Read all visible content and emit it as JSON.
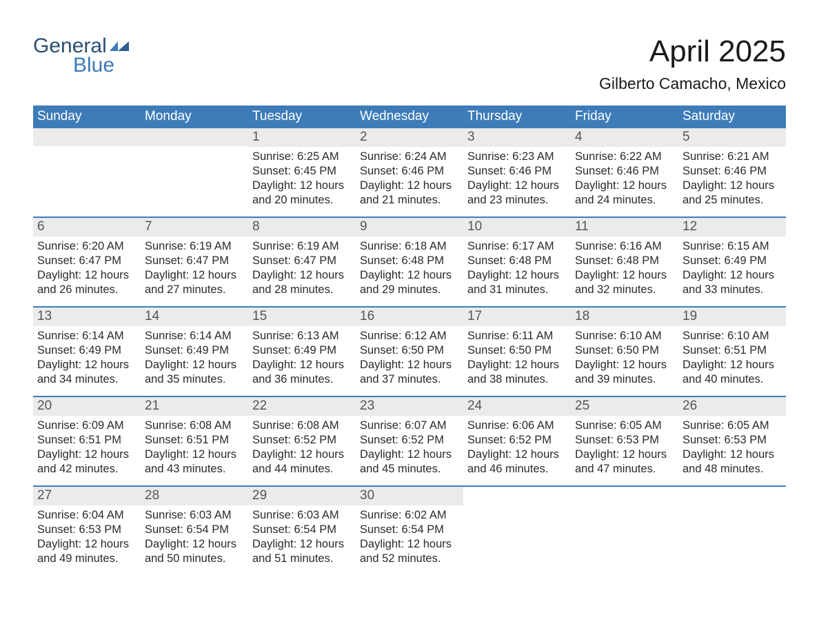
{
  "logo": {
    "line1": "General",
    "line2": "Blue",
    "shape_color": "#3d7cb8"
  },
  "header": {
    "title": "April 2025",
    "location": "Gilberto Camacho, Mexico"
  },
  "colors": {
    "header_bar": "#3d7cb8",
    "row_separator": "#3d7cb8",
    "daynum_bg": "#ebebeb",
    "text": "#2a2a2a",
    "daynum_text": "#555555",
    "page_bg": "#ffffff"
  },
  "weekdays": [
    "Sunday",
    "Monday",
    "Tuesday",
    "Wednesday",
    "Thursday",
    "Friday",
    "Saturday"
  ],
  "weeks": [
    [
      null,
      null,
      {
        "day": "1",
        "sunrise": "Sunrise: 6:25 AM",
        "sunset": "Sunset: 6:45 PM",
        "daylight": "Daylight: 12 hours and 20 minutes."
      },
      {
        "day": "2",
        "sunrise": "Sunrise: 6:24 AM",
        "sunset": "Sunset: 6:46 PM",
        "daylight": "Daylight: 12 hours and 21 minutes."
      },
      {
        "day": "3",
        "sunrise": "Sunrise: 6:23 AM",
        "sunset": "Sunset: 6:46 PM",
        "daylight": "Daylight: 12 hours and 23 minutes."
      },
      {
        "day": "4",
        "sunrise": "Sunrise: 6:22 AM",
        "sunset": "Sunset: 6:46 PM",
        "daylight": "Daylight: 12 hours and 24 minutes."
      },
      {
        "day": "5",
        "sunrise": "Sunrise: 6:21 AM",
        "sunset": "Sunset: 6:46 PM",
        "daylight": "Daylight: 12 hours and 25 minutes."
      }
    ],
    [
      {
        "day": "6",
        "sunrise": "Sunrise: 6:20 AM",
        "sunset": "Sunset: 6:47 PM",
        "daylight": "Daylight: 12 hours and 26 minutes."
      },
      {
        "day": "7",
        "sunrise": "Sunrise: 6:19 AM",
        "sunset": "Sunset: 6:47 PM",
        "daylight": "Daylight: 12 hours and 27 minutes."
      },
      {
        "day": "8",
        "sunrise": "Sunrise: 6:19 AM",
        "sunset": "Sunset: 6:47 PM",
        "daylight": "Daylight: 12 hours and 28 minutes."
      },
      {
        "day": "9",
        "sunrise": "Sunrise: 6:18 AM",
        "sunset": "Sunset: 6:48 PM",
        "daylight": "Daylight: 12 hours and 29 minutes."
      },
      {
        "day": "10",
        "sunrise": "Sunrise: 6:17 AM",
        "sunset": "Sunset: 6:48 PM",
        "daylight": "Daylight: 12 hours and 31 minutes."
      },
      {
        "day": "11",
        "sunrise": "Sunrise: 6:16 AM",
        "sunset": "Sunset: 6:48 PM",
        "daylight": "Daylight: 12 hours and 32 minutes."
      },
      {
        "day": "12",
        "sunrise": "Sunrise: 6:15 AM",
        "sunset": "Sunset: 6:49 PM",
        "daylight": "Daylight: 12 hours and 33 minutes."
      }
    ],
    [
      {
        "day": "13",
        "sunrise": "Sunrise: 6:14 AM",
        "sunset": "Sunset: 6:49 PM",
        "daylight": "Daylight: 12 hours and 34 minutes."
      },
      {
        "day": "14",
        "sunrise": "Sunrise: 6:14 AM",
        "sunset": "Sunset: 6:49 PM",
        "daylight": "Daylight: 12 hours and 35 minutes."
      },
      {
        "day": "15",
        "sunrise": "Sunrise: 6:13 AM",
        "sunset": "Sunset: 6:49 PM",
        "daylight": "Daylight: 12 hours and 36 minutes."
      },
      {
        "day": "16",
        "sunrise": "Sunrise: 6:12 AM",
        "sunset": "Sunset: 6:50 PM",
        "daylight": "Daylight: 12 hours and 37 minutes."
      },
      {
        "day": "17",
        "sunrise": "Sunrise: 6:11 AM",
        "sunset": "Sunset: 6:50 PM",
        "daylight": "Daylight: 12 hours and 38 minutes."
      },
      {
        "day": "18",
        "sunrise": "Sunrise: 6:10 AM",
        "sunset": "Sunset: 6:50 PM",
        "daylight": "Daylight: 12 hours and 39 minutes."
      },
      {
        "day": "19",
        "sunrise": "Sunrise: 6:10 AM",
        "sunset": "Sunset: 6:51 PM",
        "daylight": "Daylight: 12 hours and 40 minutes."
      }
    ],
    [
      {
        "day": "20",
        "sunrise": "Sunrise: 6:09 AM",
        "sunset": "Sunset: 6:51 PM",
        "daylight": "Daylight: 12 hours and 42 minutes."
      },
      {
        "day": "21",
        "sunrise": "Sunrise: 6:08 AM",
        "sunset": "Sunset: 6:51 PM",
        "daylight": "Daylight: 12 hours and 43 minutes."
      },
      {
        "day": "22",
        "sunrise": "Sunrise: 6:08 AM",
        "sunset": "Sunset: 6:52 PM",
        "daylight": "Daylight: 12 hours and 44 minutes."
      },
      {
        "day": "23",
        "sunrise": "Sunrise: 6:07 AM",
        "sunset": "Sunset: 6:52 PM",
        "daylight": "Daylight: 12 hours and 45 minutes."
      },
      {
        "day": "24",
        "sunrise": "Sunrise: 6:06 AM",
        "sunset": "Sunset: 6:52 PM",
        "daylight": "Daylight: 12 hours and 46 minutes."
      },
      {
        "day": "25",
        "sunrise": "Sunrise: 6:05 AM",
        "sunset": "Sunset: 6:53 PM",
        "daylight": "Daylight: 12 hours and 47 minutes."
      },
      {
        "day": "26",
        "sunrise": "Sunrise: 6:05 AM",
        "sunset": "Sunset: 6:53 PM",
        "daylight": "Daylight: 12 hours and 48 minutes."
      }
    ],
    [
      {
        "day": "27",
        "sunrise": "Sunrise: 6:04 AM",
        "sunset": "Sunset: 6:53 PM",
        "daylight": "Daylight: 12 hours and 49 minutes."
      },
      {
        "day": "28",
        "sunrise": "Sunrise: 6:03 AM",
        "sunset": "Sunset: 6:54 PM",
        "daylight": "Daylight: 12 hours and 50 minutes."
      },
      {
        "day": "29",
        "sunrise": "Sunrise: 6:03 AM",
        "sunset": "Sunset: 6:54 PM",
        "daylight": "Daylight: 12 hours and 51 minutes."
      },
      {
        "day": "30",
        "sunrise": "Sunrise: 6:02 AM",
        "sunset": "Sunset: 6:54 PM",
        "daylight": "Daylight: 12 hours and 52 minutes."
      },
      null,
      null,
      null
    ]
  ]
}
